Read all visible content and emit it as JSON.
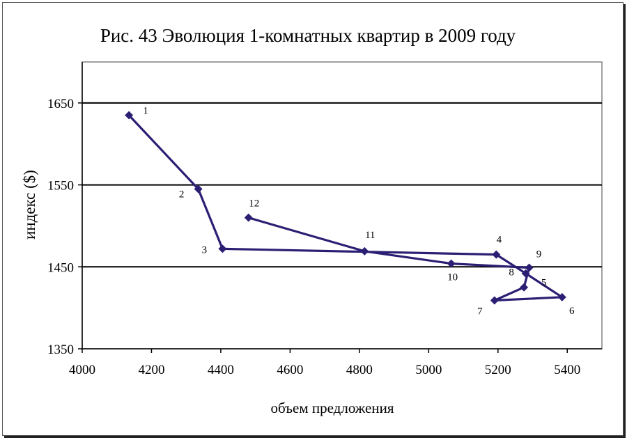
{
  "chart_data": {
    "type": "line",
    "title": "Рис. 43 Эволюция 1-комнатных квартир в 2009 году",
    "xlabel": "объем предложения",
    "ylabel": "индекс ($)",
    "xlim": [
      4000,
      5500
    ],
    "ylim": [
      1350,
      1700
    ],
    "xticks": [
      "4000",
      "4200",
      "4400",
      "4600",
      "4800",
      "5000",
      "5200",
      "5400"
    ],
    "yticks": [
      "1350",
      "1450",
      "1550",
      "1650"
    ],
    "grid": "horizontal",
    "series": [
      {
        "color": "#2b1f73",
        "points": [
          {
            "label": "1",
            "x": 4135,
            "y": 1635
          },
          {
            "label": "2",
            "x": 4335,
            "y": 1545
          },
          {
            "label": "3",
            "x": 4405,
            "y": 1472
          },
          {
            "label": "4",
            "x": 5195,
            "y": 1465
          },
          {
            "label": "5",
            "x": 5280,
            "y": 1442
          },
          {
            "label": "6",
            "x": 5385,
            "y": 1413
          },
          {
            "label": "7",
            "x": 5190,
            "y": 1409
          },
          {
            "label": "8",
            "x": 5275,
            "y": 1425
          },
          {
            "label": "9",
            "x": 5290,
            "y": 1449
          },
          {
            "label": "10",
            "x": 5065,
            "y": 1454
          },
          {
            "label": "11",
            "x": 4815,
            "y": 1469
          },
          {
            "label": "12",
            "x": 4480,
            "y": 1510
          }
        ]
      }
    ]
  }
}
